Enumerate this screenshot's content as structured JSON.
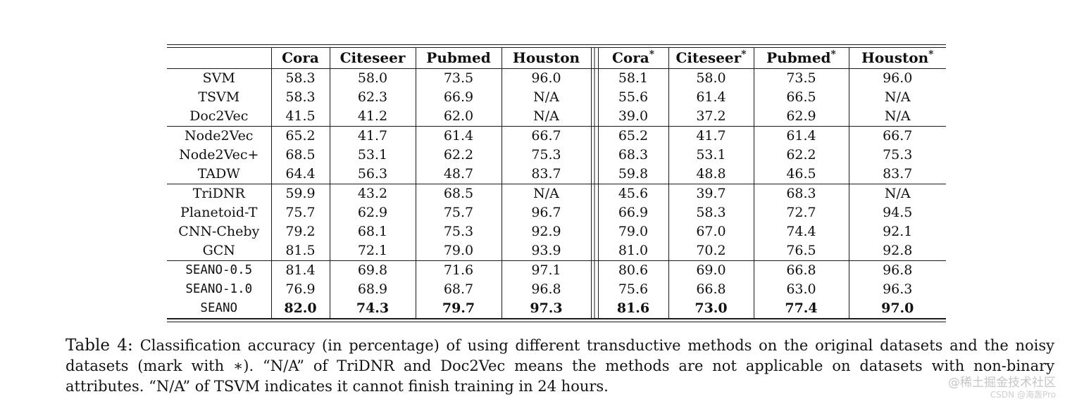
{
  "table": {
    "headers": [
      {
        "label": "",
        "star": ""
      },
      {
        "label": "Cora",
        "star": ""
      },
      {
        "label": "Citeseer",
        "star": ""
      },
      {
        "label": "Pubmed",
        "star": ""
      },
      {
        "label": "Houston",
        "star": ""
      },
      {
        "label": "Cora",
        "star": "*"
      },
      {
        "label": "Citeseer",
        "star": "*"
      },
      {
        "label": "Pubmed",
        "star": "*"
      },
      {
        "label": "Houston",
        "star": "*"
      }
    ],
    "rows": [
      {
        "method": "SVM",
        "values": [
          "58.3",
          "58.0",
          "73.5",
          "96.0",
          "58.1",
          "58.0",
          "73.5",
          "96.0"
        ],
        "mono": false,
        "bold": false,
        "group_start": false
      },
      {
        "method": "TSVM",
        "values": [
          "58.3",
          "62.3",
          "66.9",
          "N/A",
          "55.6",
          "61.4",
          "66.5",
          "N/A"
        ],
        "mono": false,
        "bold": false,
        "group_start": false
      },
      {
        "method": "Doc2Vec",
        "values": [
          "41.5",
          "41.2",
          "62.0",
          "N/A",
          "39.0",
          "37.2",
          "62.9",
          "N/A"
        ],
        "mono": false,
        "bold": false,
        "group_start": false
      },
      {
        "method": "Node2Vec",
        "values": [
          "65.2",
          "41.7",
          "61.4",
          "66.7",
          "65.2",
          "41.7",
          "61.4",
          "66.7"
        ],
        "mono": false,
        "bold": false,
        "group_start": true
      },
      {
        "method": "Node2Vec+",
        "values": [
          "68.5",
          "53.1",
          "62.2",
          "75.3",
          "68.3",
          "53.1",
          "62.2",
          "75.3"
        ],
        "mono": false,
        "bold": false,
        "group_start": false
      },
      {
        "method": "TADW",
        "values": [
          "64.4",
          "56.3",
          "48.7",
          "83.7",
          "59.8",
          "48.8",
          "46.5",
          "83.7"
        ],
        "mono": false,
        "bold": false,
        "group_start": false
      },
      {
        "method": "TriDNR",
        "values": [
          "59.9",
          "43.2",
          "68.5",
          "N/A",
          "45.6",
          "39.7",
          "68.3",
          "N/A"
        ],
        "mono": false,
        "bold": false,
        "group_start": true
      },
      {
        "method": "Planetoid-T",
        "values": [
          "75.7",
          "62.9",
          "75.7",
          "96.7",
          "66.9",
          "58.3",
          "72.7",
          "94.5"
        ],
        "mono": false,
        "bold": false,
        "group_start": false
      },
      {
        "method": "CNN-Cheby",
        "values": [
          "79.2",
          "68.1",
          "75.3",
          "92.9",
          "79.0",
          "67.0",
          "74.4",
          "92.1"
        ],
        "mono": false,
        "bold": false,
        "group_start": false
      },
      {
        "method": "GCN",
        "values": [
          "81.5",
          "72.1",
          "79.0",
          "93.9",
          "81.0",
          "70.2",
          "76.5",
          "92.8"
        ],
        "mono": false,
        "bold": false,
        "group_start": false
      },
      {
        "method": "SEANO-0.5",
        "values": [
          "81.4",
          "69.8",
          "71.6",
          "97.1",
          "80.6",
          "69.0",
          "66.8",
          "96.8"
        ],
        "mono": true,
        "bold": false,
        "group_start": true
      },
      {
        "method": "SEANO-1.0",
        "values": [
          "76.9",
          "68.9",
          "68.7",
          "96.8",
          "75.6",
          "66.8",
          "63.0",
          "96.3"
        ],
        "mono": true,
        "bold": false,
        "group_start": false
      },
      {
        "method": "SEANO",
        "values": [
          "82.0",
          "74.3",
          "79.7",
          "97.3",
          "81.6",
          "73.0",
          "77.4",
          "97.0"
        ],
        "mono": true,
        "bold": true,
        "group_start": false
      }
    ]
  },
  "caption": {
    "label": "Table 4:",
    "text": "Classification accuracy (in percentage) of using different transductive methods on the original datasets and the noisy datasets (mark with ∗). “N/A” of TriDNR and Doc2Vec means the methods are not applicable on datasets with non-binary attributes. “N/A” of TSVM indicates it cannot finish training in 24 hours."
  },
  "watermark": {
    "line1": "@稀土掘金技术社区",
    "line2": "CSDN @海轰Pro"
  },
  "colors": {
    "text": "#111111",
    "rule": "#1a1a1a",
    "watermark_primary": "#c6c6c6",
    "watermark_secondary": "#cfcfcf",
    "background": "#ffffff"
  }
}
